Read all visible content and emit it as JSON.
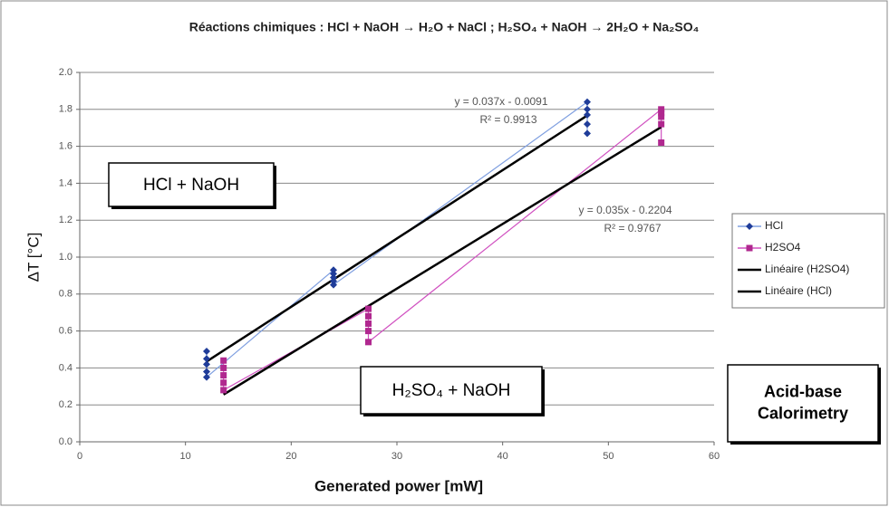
{
  "chart_data": {
    "type": "scatter",
    "title": "Réactions chimiques : HCl + NaOH → H₂O + NaCl  ;  H₂SO₄ + NaOH → 2H₂O + Na₂SO₄",
    "xlabel": "Generated power [mW]",
    "ylabel": "ΔT [°C]",
    "xlim": [
      0,
      60
    ],
    "xticks": [
      0,
      10,
      20,
      30,
      40,
      50,
      60
    ],
    "ylim": [
      0,
      2
    ],
    "yticks": [
      {
        "value": 0,
        "label": "0.0"
      },
      0.2,
      0.4,
      0.6,
      0.8,
      {
        "value": 1,
        "label": "1.0"
      },
      1.2,
      1.4,
      1.6,
      1.8,
      {
        "value": 2,
        "label": "2.0"
      }
    ],
    "grid": true,
    "legend": "right",
    "series": [
      {
        "name": "HCl",
        "color": "#1f3c99",
        "line_color": "#7f9fe0",
        "marker": "diamond",
        "x": [
          12,
          12,
          12,
          12,
          12,
          24,
          24,
          24,
          24,
          24,
          48,
          48,
          48,
          48,
          48
        ],
        "y": [
          0.49,
          0.45,
          0.42,
          0.38,
          0.35,
          0.93,
          0.91,
          0.89,
          0.87,
          0.85,
          1.84,
          1.8,
          1.77,
          1.72,
          1.67
        ]
      },
      {
        "name": "H2SO4",
        "color": "#b0288f",
        "line_color": "#d050c0",
        "marker": "square",
        "x": [
          13.6,
          13.6,
          13.6,
          13.6,
          13.6,
          27.3,
          27.3,
          27.3,
          27.3,
          27.3,
          55,
          55,
          55,
          55,
          55
        ],
        "y": [
          0.44,
          0.4,
          0.36,
          0.32,
          0.28,
          0.72,
          0.68,
          0.64,
          0.6,
          0.54,
          1.8,
          1.78,
          1.76,
          1.72,
          1.62
        ]
      }
    ],
    "trendlines": [
      {
        "name": "Linéaire (H2SO4)",
        "series": 1,
        "color": "#000000",
        "slope": 0.035,
        "intercept": -0.2204,
        "equation": "y = 0.035x - 0.2204",
        "r2": "R² = 0.9767"
      },
      {
        "name": "Linéaire (HCl)",
        "series": 0,
        "color": "#000000",
        "slope": 0.037,
        "intercept": -0.0091,
        "equation": "y = 0.037x - 0.0091",
        "r2": "R² = 0.9913"
      }
    ],
    "annotations": [
      {
        "text": "HCl + NaOH"
      },
      {
        "text": "H₂SO₄ + NaOH"
      },
      {
        "text_lines": [
          "Acid-base",
          "Calorimetry"
        ]
      }
    ]
  }
}
